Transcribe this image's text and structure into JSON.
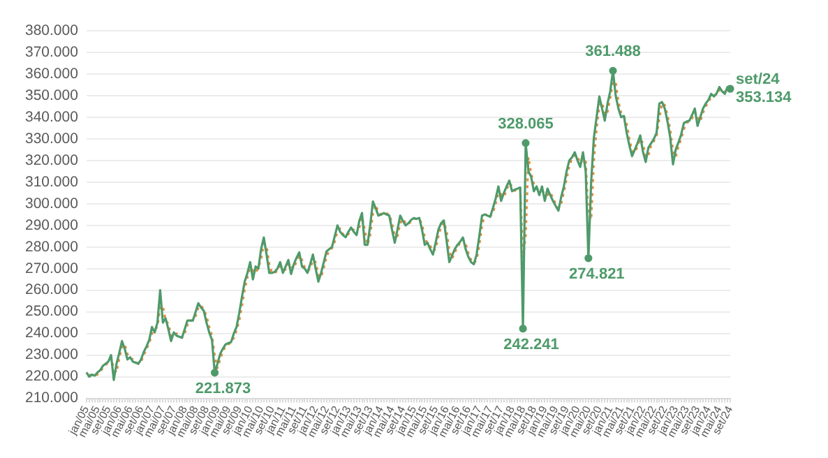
{
  "chart_data": {
    "type": "line",
    "categories": [
      "jan/05",
      null,
      null,
      null,
      "mai/05",
      null,
      null,
      null,
      "set/05",
      null,
      null,
      null,
      "jan/06",
      null,
      null,
      null,
      "mai/06",
      null,
      null,
      null,
      "set/06",
      null,
      null,
      null,
      "jan/07",
      null,
      null,
      null,
      "mai/07",
      null,
      null,
      null,
      "set/07",
      null,
      null,
      null,
      "jan/08",
      null,
      null,
      null,
      "mai/08",
      null,
      null,
      null,
      "set/08",
      null,
      null,
      null,
      "jan/09",
      null,
      null,
      null,
      "mai/09",
      null,
      null,
      null,
      "set/09",
      null,
      null,
      null,
      "jan/10",
      null,
      null,
      null,
      "mai/10",
      null,
      null,
      null,
      "set/10",
      null,
      null,
      null,
      "jan/11",
      null,
      null,
      null,
      "mai/11",
      null,
      null,
      null,
      "set/11",
      null,
      null,
      null,
      "jan/12",
      null,
      null,
      null,
      "mai/12",
      null,
      null,
      null,
      "set/12",
      null,
      null,
      null,
      "jan/13",
      null,
      null,
      null,
      "mai/13",
      null,
      null,
      null,
      "set/13",
      null,
      null,
      null,
      "jan/14",
      null,
      null,
      null,
      "mai/14",
      null,
      null,
      null,
      "set/14",
      null,
      null,
      null,
      "jan/15",
      null,
      null,
      null,
      "mai/15",
      null,
      null,
      null,
      "set/15",
      null,
      null,
      null,
      "jan/16",
      null,
      null,
      null,
      "mai/16",
      null,
      null,
      null,
      "set/16",
      null,
      null,
      null,
      "jan/17",
      null,
      null,
      null,
      "mai/17",
      null,
      null,
      null,
      "set/17",
      null,
      null,
      null,
      "jan/18",
      null,
      null,
      null,
      "mai/18",
      null,
      null,
      null,
      "set/18",
      null,
      null,
      null,
      "jan/19",
      null,
      null,
      null,
      "mai/19",
      null,
      null,
      null,
      "set/19",
      null,
      null,
      null,
      "jan/20",
      null,
      null,
      null,
      "mai/20",
      null,
      null,
      null,
      "set/20",
      null,
      null,
      null,
      "jan/21",
      null,
      null,
      null,
      "mai/21",
      null,
      null,
      null,
      "set/21",
      null,
      null,
      null,
      "jan/22",
      null,
      null,
      null,
      "mai/22",
      null,
      null,
      null,
      "set/22",
      null,
      null,
      null,
      "jan/23",
      null,
      null,
      null,
      "mai/23",
      null,
      null,
      null,
      "set/23",
      null,
      null,
      null,
      "jan/24",
      null,
      null,
      null,
      "mai/24",
      null,
      null,
      null,
      "set/24"
    ],
    "series": [
      {
        "color": "#4e9a6a",
        "line_style": "solid",
        "values": [
          222000,
          220000,
          221000,
          220500,
          222000,
          223000,
          225000,
          226000,
          227000,
          230000,
          218500,
          226000,
          231000,
          236500,
          233000,
          228000,
          229000,
          227000,
          226500,
          226000,
          228000,
          231500,
          234000,
          237000,
          243000,
          240500,
          245000,
          260000,
          245000,
          247000,
          242000,
          236500,
          240500,
          239000,
          238500,
          238000,
          242000,
          246000,
          246000,
          246000,
          250000,
          254000,
          252000,
          250500,
          245000,
          240500,
          237000,
          221873,
          226000,
          230500,
          233000,
          235000,
          235500,
          236000,
          240000,
          243000,
          249500,
          257000,
          264000,
          268000,
          273000,
          265000,
          271000,
          270000,
          279000,
          284400,
          276500,
          268000,
          268000,
          268500,
          270000,
          273000,
          268000,
          271000,
          274000,
          267500,
          272000,
          275000,
          277500,
          271000,
          270000,
          268000,
          272000,
          276500,
          270000,
          264000,
          268000,
          273000,
          278000,
          279000,
          280000,
          285000,
          290000,
          287000,
          285500,
          284500,
          287000,
          289000,
          287000,
          285500,
          292000,
          295700,
          281000,
          281000,
          290000,
          301000,
          298000,
          294500,
          295000,
          295700,
          295000,
          294500,
          288000,
          282000,
          288000,
          294500,
          292000,
          290000,
          291000,
          292500,
          293400,
          293000,
          293400,
          288000,
          281000,
          282000,
          279000,
          276500,
          282000,
          288000,
          291000,
          292300,
          283000,
          273000,
          276000,
          279000,
          281000,
          282500,
          284400,
          279000,
          275400,
          273000,
          272000,
          276500,
          285000,
          294500,
          295000,
          294500,
          294000,
          298000,
          302400,
          308000,
          301300,
          305000,
          308000,
          310700,
          305800,
          306500,
          307000,
          307500,
          242241,
          328065,
          315000,
          312500,
          305800,
          308000,
          304000,
          308000,
          301300,
          307000,
          304000,
          301300,
          299000,
          296800,
          303000,
          308000,
          315000,
          320000,
          321500,
          323800,
          320000,
          317000,
          323800,
          315000,
          274821,
          310000,
          330500,
          340000,
          349600,
          344000,
          338400,
          346300,
          352000,
          361488,
          350000,
          344000,
          340000,
          340600,
          333000,
          327000,
          322000,
          325000,
          328000,
          331600,
          324000,
          319300,
          326000,
          328000,
          330000,
          332800,
          346300,
          347000,
          344000,
          338000,
          330500,
          318200,
          325000,
          328300,
          332000,
          337300,
          338000,
          338400,
          341000,
          344000,
          336000,
          340000,
          344000,
          346300,
          348000,
          350800,
          349600,
          351000,
          354000,
          352000,
          350800,
          354000,
          353134
        ],
        "value_labels": [
          null,
          null,
          null,
          null,
          null,
          null,
          null,
          null,
          null,
          null,
          null,
          null,
          null,
          null,
          null,
          null,
          null,
          null,
          null,
          null,
          null,
          null,
          null,
          null,
          null,
          null,
          null,
          null,
          null,
          null,
          null,
          null,
          null,
          null,
          null,
          null,
          null,
          null,
          null,
          null,
          null,
          null,
          null,
          null,
          null,
          null,
          null,
          "221.873",
          null,
          null,
          null,
          null,
          null,
          null,
          null,
          null,
          null,
          null,
          null,
          null,
          null,
          null,
          null,
          null,
          null,
          null,
          null,
          null,
          null,
          null,
          null,
          null,
          null,
          null,
          null,
          null,
          null,
          null,
          null,
          null,
          null,
          null,
          null,
          null,
          null,
          null,
          null,
          null,
          null,
          null,
          null,
          null,
          null,
          null,
          null,
          null,
          null,
          null,
          null,
          null,
          null,
          null,
          null,
          null,
          null,
          null,
          null,
          null,
          null,
          null,
          null,
          null,
          null,
          null,
          null,
          null,
          null,
          null,
          null,
          null,
          null,
          null,
          null,
          null,
          null,
          null,
          null,
          null,
          null,
          null,
          null,
          null,
          null,
          null,
          null,
          null,
          null,
          null,
          null,
          null,
          null,
          null,
          null,
          null,
          null,
          null,
          null,
          null,
          null,
          null,
          null,
          null,
          null,
          null,
          null,
          null,
          null,
          null,
          null,
          null,
          "242.241",
          "328.065",
          null,
          null,
          null,
          null,
          null,
          null,
          null,
          null,
          null,
          null,
          null,
          null,
          null,
          null,
          null,
          null,
          null,
          null,
          null,
          null,
          null,
          null,
          "274.821",
          null,
          null,
          null,
          null,
          null,
          null,
          null,
          null,
          "361.488",
          null,
          null,
          null,
          null,
          null,
          null,
          null,
          null,
          null,
          null,
          null,
          null,
          null,
          null,
          null,
          null,
          null,
          null,
          null,
          null,
          null,
          null,
          null,
          null,
          null,
          null,
          null,
          null,
          null,
          null,
          null,
          null,
          null,
          null,
          null,
          null,
          null,
          null,
          null,
          null,
          null,
          null,
          "353.134"
        ]
      },
      {
        "color": "#e58a3c",
        "line_style": "dotted",
        "values": [
          null,
          221000,
          220500,
          220500,
          221000,
          222500,
          224000,
          225500,
          226500,
          228500,
          224000,
          222000,
          228500,
          234000,
          235000,
          230500,
          228500,
          228000,
          227000,
          226000,
          227000,
          230000,
          233000,
          235500,
          240000,
          242000,
          243000,
          252500,
          252500,
          246000,
          244500,
          239000,
          238500,
          240000,
          239000,
          238000,
          240000,
          244000,
          246000,
          246000,
          248000,
          252000,
          253000,
          251000,
          248000,
          243000,
          239000,
          229500,
          224000,
          228000,
          232000,
          234000,
          235000,
          236000,
          238000,
          241500,
          246000,
          253000,
          260500,
          266000,
          270500,
          269000,
          268000,
          270500,
          274500,
          281500,
          280500,
          272000,
          268000,
          268000,
          269000,
          271500,
          270500,
          269500,
          272500,
          271000,
          270000,
          273500,
          276000,
          274000,
          270500,
          269000,
          270000,
          274000,
          273000,
          267000,
          266000,
          270500,
          275500,
          278500,
          279500,
          282500,
          287500,
          288500,
          286000,
          285000,
          286000,
          288000,
          288000,
          286000,
          289000,
          294000,
          288000,
          281000,
          285500,
          295500,
          299500,
          296000,
          295000,
          295500,
          295500,
          295000,
          291000,
          285000,
          285000,
          291000,
          293000,
          291000,
          290500,
          292000,
          293000,
          293000,
          293000,
          290500,
          284500,
          281500,
          280500,
          278000,
          279000,
          285000,
          289500,
          291500,
          287500,
          278000,
          274500,
          277500,
          280000,
          282000,
          283500,
          281500,
          277000,
          274000,
          272500,
          274000,
          281000,
          290000,
          295000,
          295000,
          294000,
          296000,
          300000,
          305000,
          304500,
          303000,
          306500,
          309500,
          308000,
          306000,
          307000,
          307000,
          275000,
          285000,
          321500,
          314000,
          309000,
          307000,
          306000,
          306000,
          304500,
          304000,
          305500,
          302500,
          300000,
          298000,
          300000,
          305500,
          311500,
          317500,
          321000,
          322500,
          322000,
          318500,
          320500,
          319500,
          295000,
          292500,
          320000,
          335000,
          345000,
          347000,
          341000,
          342500,
          349000,
          356500,
          356000,
          347000,
          342000,
          340500,
          337000,
          330000,
          324500,
          323500,
          326500,
          330000,
          328000,
          321500,
          322500,
          327000,
          329000,
          331500,
          339500,
          346500,
          345500,
          341000,
          334000,
          324500,
          321500,
          326500,
          330000,
          334500,
          337500,
          338000,
          339500,
          342500,
          340000,
          338000,
          342000,
          345000,
          347000,
          349500,
          350000,
          350500,
          352500,
          353000,
          351500,
          352500,
          353500
        ]
      }
    ],
    "annotations": [
      {
        "text": "set/24",
        "x": "set/24",
        "y": 353134
      }
    ],
    "ylim": [
      210000,
      380000
    ],
    "yticks": [
      {
        "value": 210000,
        "label": "210.000"
      },
      {
        "value": 220000,
        "label": "220.000"
      },
      {
        "value": 230000,
        "label": "230.000"
      },
      {
        "value": 240000,
        "label": "240.000"
      },
      {
        "value": 250000,
        "label": "250.000"
      },
      {
        "value": 260000,
        "label": "260.000"
      },
      {
        "value": 270000,
        "label": "270.000"
      },
      {
        "value": 280000,
        "label": "280.000"
      },
      {
        "value": 290000,
        "label": "290.000"
      },
      {
        "value": 300000,
        "label": "300.000"
      },
      {
        "value": 310000,
        "label": "310.000"
      },
      {
        "value": 320000,
        "label": "320.000"
      },
      {
        "value": 330000,
        "label": "330.000"
      },
      {
        "value": 340000,
        "label": "340.000"
      },
      {
        "value": 350000,
        "label": "350.000"
      },
      {
        "value": 360000,
        "label": "360.000"
      },
      {
        "value": 370000,
        "label": "370.000"
      },
      {
        "value": 380000,
        "label": "380.000"
      }
    ],
    "grid": "y",
    "legend": false
  }
}
